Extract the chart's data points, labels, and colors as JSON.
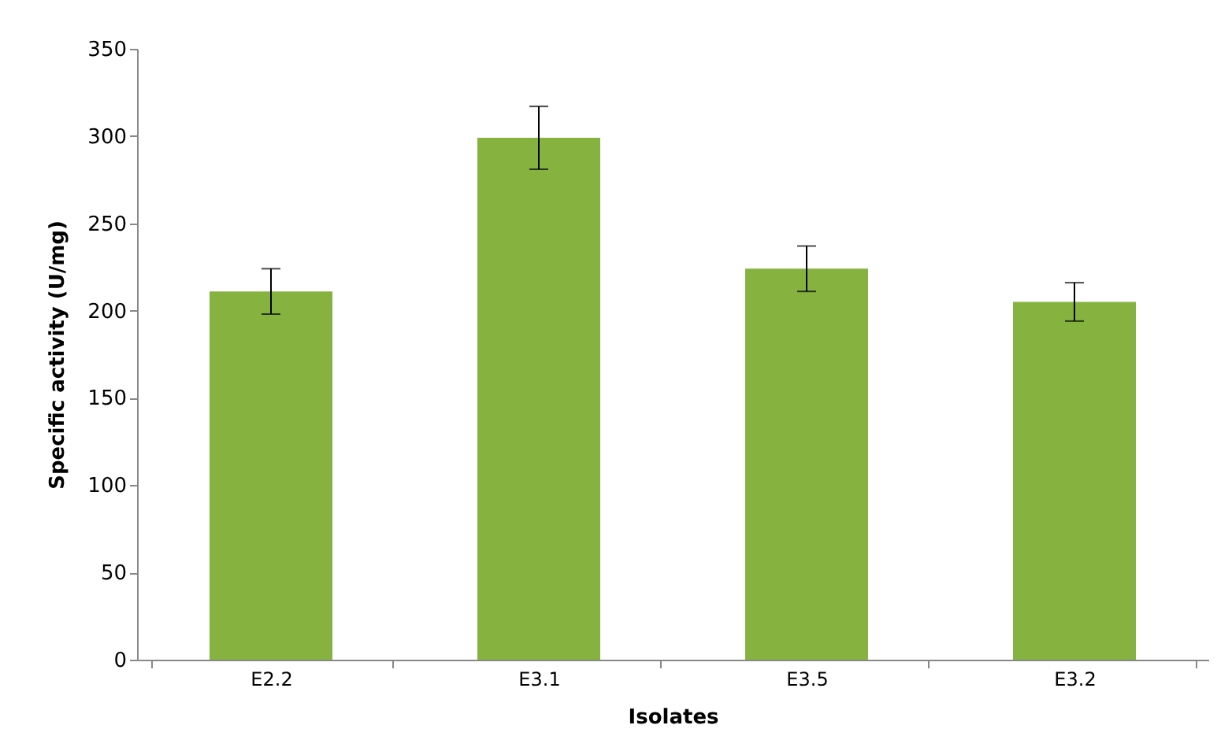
{
  "chart_data": {
    "type": "bar",
    "xlabel": "Isolates",
    "ylabel": "Specific activity (U/mg)",
    "categories": [
      "E2.2",
      "E3.1",
      "E3.5",
      "E3.2"
    ],
    "values": [
      211,
      299,
      224,
      205
    ],
    "errors": [
      13,
      18,
      13,
      11
    ],
    "color": "#86b33f",
    "ylim": [
      0,
      350
    ],
    "yticks": [
      0,
      50,
      100,
      150,
      200,
      250,
      300,
      350
    ],
    "grid": false
  }
}
